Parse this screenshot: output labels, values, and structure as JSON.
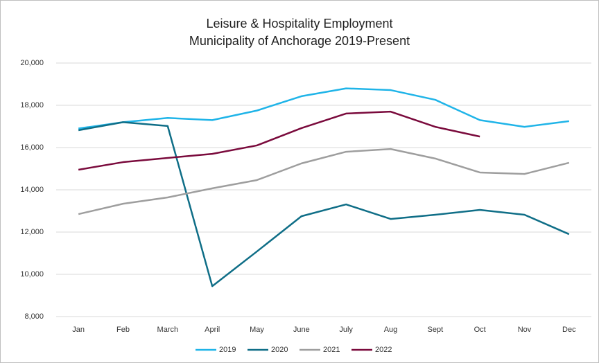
{
  "chart_data": {
    "type": "line",
    "title": "Leisure & Hospitality Employment",
    "subtitle": "Municipality of Anchorage 2019-Present",
    "categories": [
      "Jan",
      "Feb",
      "March",
      "April",
      "May",
      "June",
      "July",
      "Aug",
      "Sept",
      "Oct",
      "Nov",
      "Dec"
    ],
    "series": [
      {
        "name": "2019",
        "color": "#1fb4e8",
        "values": [
          16900,
          17200,
          17400,
          17300,
          17750,
          18430,
          18800,
          18720,
          18260,
          17300,
          16980,
          17250
        ]
      },
      {
        "name": "2020",
        "color": "#0f6e87",
        "values": [
          16820,
          17200,
          17020,
          9440,
          11080,
          12750,
          13310,
          12620,
          12820,
          13050,
          12820,
          11900
        ]
      },
      {
        "name": "2021",
        "color": "#9e9e9e",
        "values": [
          12850,
          13340,
          13640,
          14070,
          14460,
          15250,
          15800,
          15930,
          15480,
          14820,
          14750,
          15280
        ]
      },
      {
        "name": "2022",
        "color": "#7a0a3c",
        "values": [
          14950,
          15310,
          15510,
          15700,
          16100,
          16920,
          17610,
          17700,
          16980,
          16520,
          null,
          null
        ]
      }
    ],
    "ylim": [
      8000,
      20000
    ],
    "yticks": [
      {
        "value": 8000,
        "label": "8,000"
      },
      {
        "value": 10000,
        "label": "10,000"
      },
      {
        "value": 12000,
        "label": "12,000"
      },
      {
        "value": 14000,
        "label": "14,000"
      },
      {
        "value": 16000,
        "label": "16,000"
      },
      {
        "value": 18000,
        "label": "18,000"
      },
      {
        "value": 20000,
        "label": "20,000"
      }
    ],
    "grid": true,
    "legend": "bottom"
  }
}
